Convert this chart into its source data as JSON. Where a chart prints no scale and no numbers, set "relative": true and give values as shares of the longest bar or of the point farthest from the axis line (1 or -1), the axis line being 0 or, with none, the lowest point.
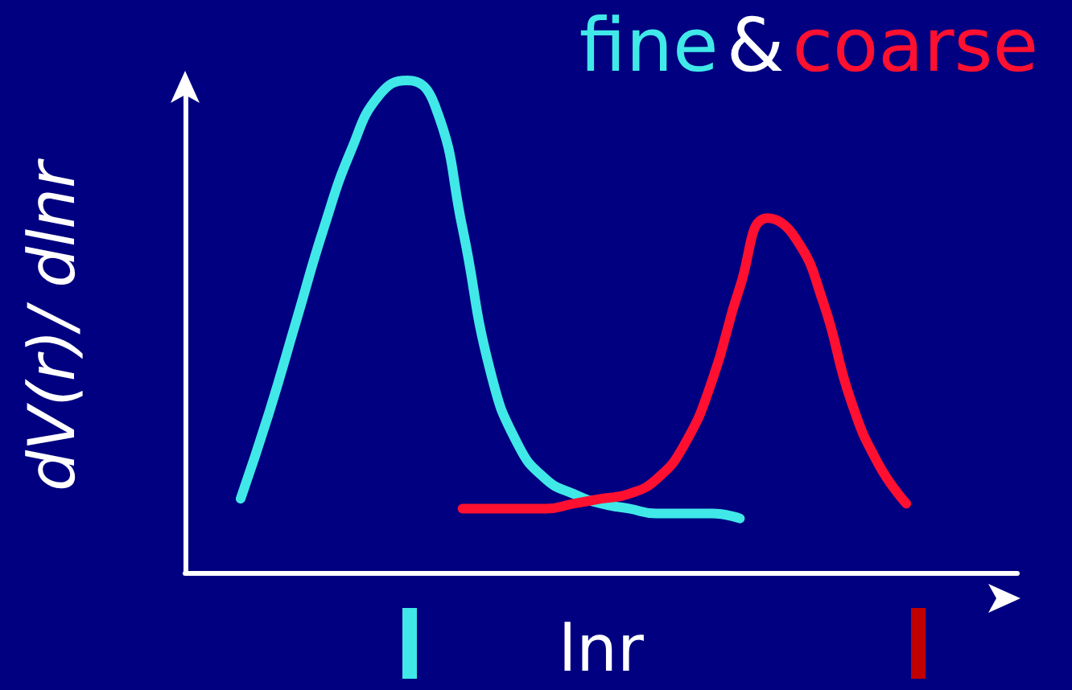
{
  "chart_data": {
    "type": "line",
    "title": "&",
    "xlabel": "lnr",
    "ylabel": "dV(r)/ dlnr",
    "relative": true,
    "legend": "top",
    "marker": "none",
    "line_style": "solid",
    "grid": false,
    "categories": [
      null,
      null,
      null,
      null,
      null,
      null,
      null,
      null,
      null,
      null,
      null,
      null,
      null,
      null,
      null,
      null,
      null,
      null,
      null,
      null,
      null,
      null,
      null,
      null,
      null,
      null,
      null,
      null,
      null,
      null,
      null
    ],
    "series": [
      {
        "name": "fine",
        "color": "#40e8e8",
        "values": [
          null,
          null,
          0.15,
          0.32,
          0.51,
          0.7,
          0.86,
          0.97,
          1.0,
          0.95,
          0.7,
          0.41,
          0.26,
          0.19,
          0.16,
          0.14,
          0.13,
          0.12,
          0.12,
          0.12,
          0.11,
          null,
          null,
          null,
          null,
          null,
          null,
          null,
          null,
          null,
          null
        ]
      },
      {
        "name": "coarse",
        "color": "#ff1030",
        "values": [
          null,
          null,
          null,
          null,
          null,
          null,
          null,
          null,
          null,
          null,
          0.13,
          0.13,
          0.13,
          0.13,
          0.14,
          0.15,
          0.16,
          0.19,
          0.26,
          0.39,
          0.58,
          0.72,
          0.68,
          0.55,
          0.35,
          0.22,
          0.14,
          null,
          null,
          null,
          null
        ]
      }
    ]
  }
}
